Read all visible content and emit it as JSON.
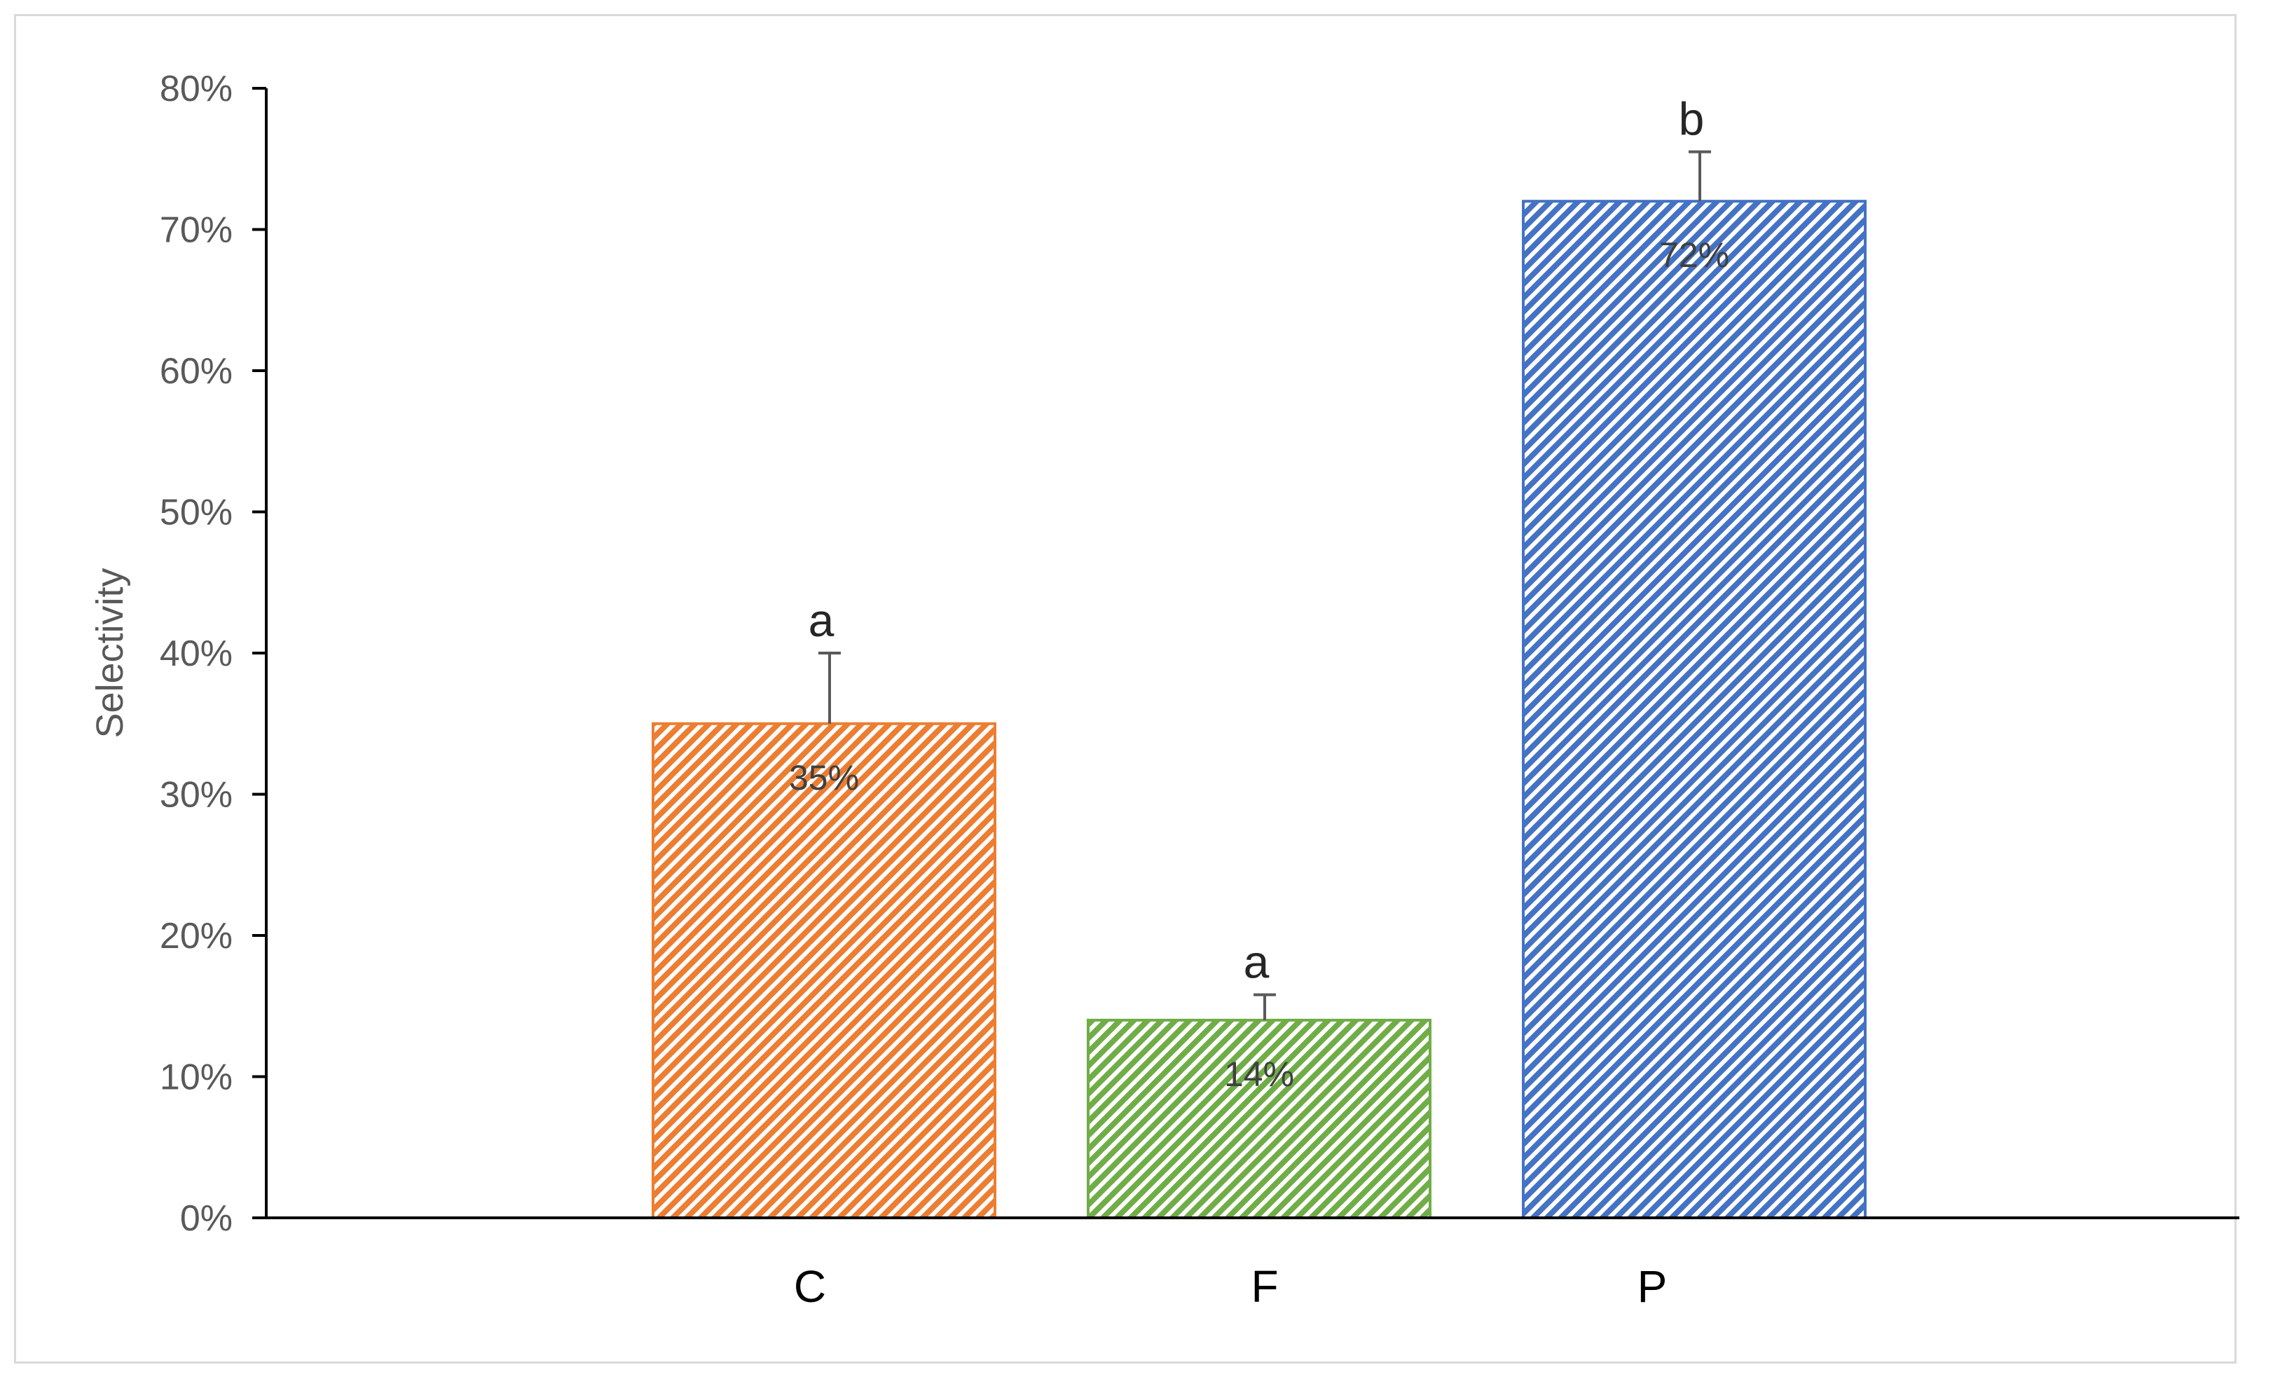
{
  "chart_data": {
    "type": "bar",
    "title": "",
    "xlabel": "",
    "ylabel": "Selectivity",
    "ylim": [
      0,
      0.8
    ],
    "yticks": [
      "0%",
      "10%",
      "20%",
      "30%",
      "40%",
      "50%",
      "60%",
      "70%",
      "80%"
    ],
    "categories": [
      "C",
      "F",
      "P"
    ],
    "values": [
      0.35,
      0.14,
      0.72
    ],
    "error": [
      0.05,
      0.018,
      0.035
    ],
    "data_labels": [
      "35%",
      "14%",
      "72%"
    ],
    "significance": [
      "a",
      "a",
      "b"
    ],
    "colors": [
      "#ED7D31",
      "#70AD47",
      "#4472C4"
    ],
    "fill_pattern": "diagonal-hatch",
    "grid": false,
    "legend": "none"
  }
}
